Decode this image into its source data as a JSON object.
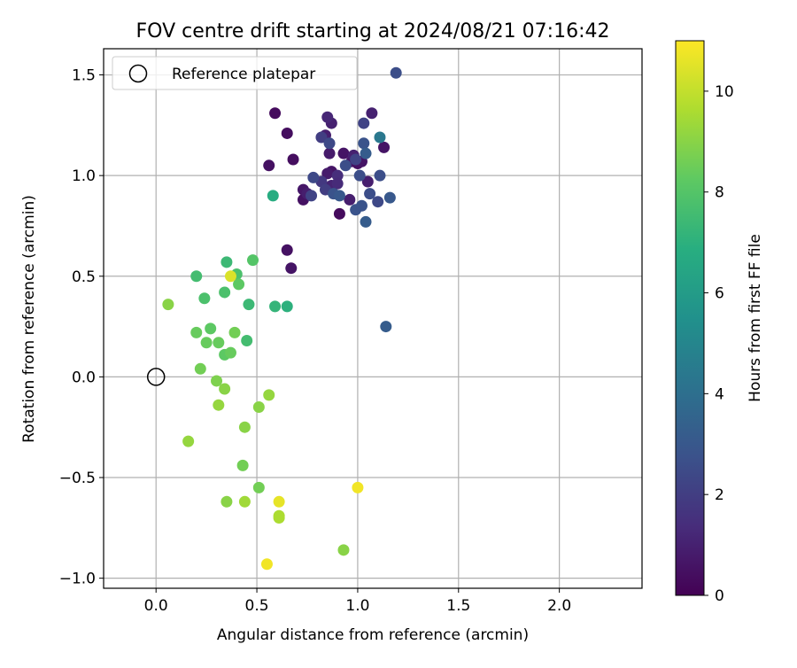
{
  "chart_data": {
    "type": "scatter",
    "title": "FOV centre drift starting at 2024/08/21 07:16:42",
    "xlabel": "Angular distance from reference (arcmin)",
    "ylabel": "Rotation from reference (arcmin)",
    "xlim": [
      -0.26,
      2.41
    ],
    "ylim": [
      -1.05,
      1.63
    ],
    "xticks": [
      0.0,
      0.5,
      1.0,
      1.5,
      2.0
    ],
    "xtick_labels": [
      "0.0",
      "0.5",
      "1.0",
      "1.5",
      "2.0"
    ],
    "yticks": [
      -1.0,
      -0.5,
      0.0,
      0.5,
      1.0,
      1.5
    ],
    "ytick_labels": [
      "−1.0",
      "−0.5",
      "0.0",
      "0.5",
      "1.0",
      "1.5"
    ],
    "grid": true,
    "legend": {
      "placement": "top-left",
      "entries": [
        "Reference platepar"
      ]
    },
    "reference_point": {
      "x": 0.0,
      "y": 0.0
    },
    "colorbar": {
      "label": "Hours from first FF file",
      "range": [
        0,
        11
      ],
      "ticks": [
        0,
        2,
        4,
        6,
        8,
        10
      ],
      "tick_labels": [
        "0",
        "2",
        "4",
        "6",
        "8",
        "10"
      ],
      "colormap": "viridis"
    },
    "series": [
      {
        "points": [
          [
            0.59,
            1.31,
            0.3
          ],
          [
            0.65,
            1.21,
            0.4
          ],
          [
            0.56,
            1.05,
            0.5
          ],
          [
            0.68,
            1.08,
            0.4
          ],
          [
            0.65,
            0.63,
            0.5
          ],
          [
            0.67,
            0.54,
            0.6
          ],
          [
            0.91,
            0.81,
            0.3
          ],
          [
            0.73,
            0.88,
            0.5
          ],
          [
            0.73,
            0.93,
            0.7
          ],
          [
            0.75,
            0.91,
            0.9
          ],
          [
            0.84,
            1.2,
            0.9
          ],
          [
            0.87,
            1.26,
            1.0
          ],
          [
            0.85,
            1.29,
            1.2
          ],
          [
            0.86,
            1.11,
            0.8
          ],
          [
            0.87,
            1.02,
            0.6
          ],
          [
            0.85,
            1.01,
            0.8
          ],
          [
            0.9,
            1.0,
            1.4
          ],
          [
            0.93,
            1.11,
            0.6
          ],
          [
            0.97,
            1.07,
            0.7
          ],
          [
            0.98,
            1.1,
            1.0
          ],
          [
            1.0,
            1.06,
            0.5
          ],
          [
            1.02,
            1.07,
            0.6
          ],
          [
            1.07,
            1.31,
            1.0
          ],
          [
            1.05,
            0.97,
            0.9
          ],
          [
            1.13,
            1.14,
            0.6
          ],
          [
            0.96,
            0.88,
            0.9
          ],
          [
            0.87,
            0.95,
            1.1
          ],
          [
            0.9,
            0.96,
            1.3
          ],
          [
            0.82,
            0.97,
            1.8
          ],
          [
            0.84,
            0.93,
            2.0
          ],
          [
            0.77,
            0.9,
            2.2
          ],
          [
            0.78,
            0.99,
            2.4
          ],
          [
            0.82,
            1.19,
            2.0
          ],
          [
            0.86,
            1.16,
            2.4
          ],
          [
            0.88,
            0.91,
            2.8
          ],
          [
            0.91,
            0.9,
            3.0
          ],
          [
            0.94,
            1.05,
            2.6
          ],
          [
            0.99,
            1.08,
            2.2
          ],
          [
            1.01,
            1.0,
            2.6
          ],
          [
            1.03,
            1.26,
            2.2
          ],
          [
            1.03,
            1.16,
            2.8
          ],
          [
            1.04,
            1.11,
            3.2
          ],
          [
            1.06,
            0.91,
            2.6
          ],
          [
            1.1,
            0.87,
            2.4
          ],
          [
            1.11,
            1.0,
            2.6
          ],
          [
            1.11,
            1.19,
            4.4
          ],
          [
            1.16,
            0.89,
            3.0
          ],
          [
            1.19,
            1.51,
            2.6
          ],
          [
            0.99,
            0.83,
            2.8
          ],
          [
            1.02,
            0.85,
            2.8
          ],
          [
            1.04,
            0.77,
            3.2
          ],
          [
            1.14,
            0.25,
            3.2
          ],
          [
            0.58,
            0.9,
            6.8
          ],
          [
            0.65,
            0.35,
            7.0
          ],
          [
            0.59,
            0.35,
            7.2
          ],
          [
            0.46,
            0.36,
            7.4
          ],
          [
            0.35,
            0.57,
            7.4
          ],
          [
            0.2,
            0.5,
            7.6
          ],
          [
            0.48,
            0.58,
            8.0
          ],
          [
            0.4,
            0.51,
            7.8
          ],
          [
            0.45,
            0.18,
            7.6
          ],
          [
            0.34,
            0.42,
            7.8
          ],
          [
            0.24,
            0.39,
            7.8
          ],
          [
            0.41,
            0.46,
            8.2
          ],
          [
            0.27,
            0.24,
            8.2
          ],
          [
            0.2,
            0.22,
            8.4
          ],
          [
            0.25,
            0.17,
            8.4
          ],
          [
            0.31,
            0.17,
            8.4
          ],
          [
            0.34,
            0.11,
            8.2
          ],
          [
            0.37,
            0.12,
            8.4
          ],
          [
            0.39,
            0.22,
            8.6
          ],
          [
            0.22,
            0.04,
            8.6
          ],
          [
            0.3,
            -0.02,
            8.8
          ],
          [
            0.34,
            -0.06,
            9.0
          ],
          [
            0.06,
            0.36,
            9.0
          ],
          [
            0.31,
            -0.14,
            9.2
          ],
          [
            0.51,
            -0.15,
            9.0
          ],
          [
            0.56,
            -0.09,
            9.2
          ],
          [
            0.44,
            -0.25,
            9.0
          ],
          [
            0.16,
            -0.32,
            9.2
          ],
          [
            0.43,
            -0.44,
            8.6
          ],
          [
            0.51,
            -0.55,
            8.6
          ],
          [
            0.35,
            -0.62,
            9.0
          ],
          [
            0.44,
            -0.62,
            9.4
          ],
          [
            0.61,
            -0.69,
            9.6
          ],
          [
            0.61,
            -0.7,
            9.6
          ],
          [
            0.93,
            -0.86,
            9.0
          ],
          [
            0.37,
            0.5,
            10.4
          ],
          [
            0.61,
            -0.62,
            10.6
          ],
          [
            1.0,
            -0.55,
            10.8
          ],
          [
            0.55,
            -0.93,
            10.8
          ]
        ]
      }
    ]
  }
}
